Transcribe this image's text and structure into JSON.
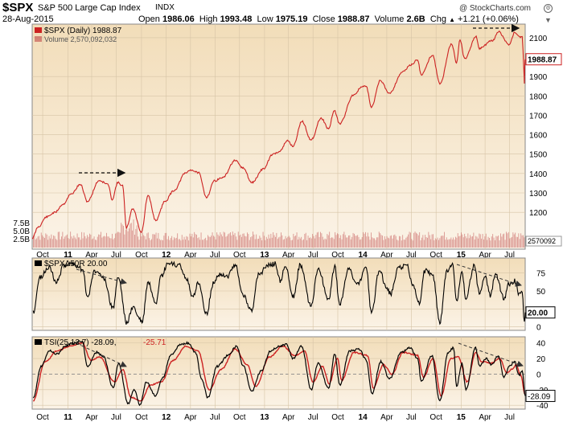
{
  "header": {
    "ticker": "$SPX",
    "name": "S&P 500 Large Cap Index",
    "exchange": "INDX",
    "credit": "@ StockCharts.com",
    "date": "28-Aug-2015",
    "open_label": "Open",
    "open": "1986.06",
    "high_label": "High",
    "high": "1993.48",
    "low_label": "Low",
    "low": "1975.19",
    "close_label": "Close",
    "close": "1988.87",
    "volume_label": "Volume",
    "volume": "2.6B",
    "chg_label": "Chg",
    "chg": "+1.21 (+0.06%)",
    "chg_arrow": "▲"
  },
  "colors": {
    "price": "#cc2222",
    "volume": "#c04848",
    "indicator": "#000000",
    "tsi_signal": "#cc2222",
    "panel_bg_top": "#f2ddb9",
    "panel_bg_bottom": "#fbf3e7",
    "grid": "#d6c4a6"
  },
  "chart_data": [
    {
      "type": "line",
      "panel": "price",
      "legend": "$SPX (Daily) 1988.87",
      "volume_legend": "Volume 2,570,092,032",
      "last_value_label": "1988.87",
      "volume_last_label": "2570092",
      "y_ticks": [
        1200,
        1300,
        1400,
        1500,
        1600,
        1700,
        1800,
        1900,
        2100
      ],
      "y_ticks_extra_labels": [
        "1200",
        "1300",
        "1400",
        "1500",
        "1600",
        "1700",
        "1800",
        "1900",
        "2100"
      ],
      "ylim": [
        1010,
        2170
      ],
      "volume_ticks": [
        "2.5B",
        "5.0B",
        "7.5B"
      ],
      "volume_tick_values": [
        2.5,
        5.0,
        7.5
      ],
      "x_tick_labels": [
        "Oct",
        "11",
        "Apr",
        "Jul",
        "Oct",
        "12",
        "Apr",
        "Jul",
        "Oct",
        "13",
        "Apr",
        "Jul",
        "Oct",
        "14",
        "Apr",
        "Jul",
        "Oct",
        "15",
        "Apr",
        "Jul"
      ],
      "x_tick_dates": [
        "2010-10-01",
        "2011-01-03",
        "2011-04-01",
        "2011-07-01",
        "2011-10-03",
        "2012-01-03",
        "2012-04-02",
        "2012-07-02",
        "2012-10-01",
        "2013-01-02",
        "2013-04-01",
        "2013-07-01",
        "2013-10-01",
        "2014-01-02",
        "2014-04-01",
        "2014-07-01",
        "2014-10-01",
        "2015-01-02",
        "2015-04-01",
        "2015-07-01"
      ],
      "xlim": [
        "2010-08-23",
        "2015-08-28"
      ],
      "series": [
        {
          "x": [
            "2010-08-23",
            "2010-09-15",
            "2010-10-15",
            "2010-11-15",
            "2010-12-15",
            "2011-01-14",
            "2011-02-18",
            "2011-03-16",
            "2011-04-29",
            "2011-05-31",
            "2011-06-16",
            "2011-07-07",
            "2011-07-25",
            "2011-08-08",
            "2011-08-31",
            "2011-10-03",
            "2011-10-27",
            "2011-11-25",
            "2011-12-30",
            "2012-01-31",
            "2012-03-15",
            "2012-04-02",
            "2012-05-01",
            "2012-06-01",
            "2012-06-29",
            "2012-07-31",
            "2012-09-14",
            "2012-10-15",
            "2012-11-15",
            "2012-12-31",
            "2013-01-31",
            "2013-02-28",
            "2013-03-28",
            "2013-04-18",
            "2013-05-21",
            "2013-06-24",
            "2013-07-31",
            "2013-08-28",
            "2013-09-18",
            "2013-10-08",
            "2013-11-29",
            "2013-12-31",
            "2014-01-15",
            "2014-02-03",
            "2014-03-07",
            "2014-04-11",
            "2014-05-30",
            "2014-06-30",
            "2014-07-24",
            "2014-08-07",
            "2014-09-18",
            "2014-10-15",
            "2014-11-28",
            "2014-12-16",
            "2014-12-29",
            "2015-01-15",
            "2015-02-27",
            "2015-03-11",
            "2015-04-30",
            "2015-05-21",
            "2015-06-30",
            "2015-07-20",
            "2015-08-10",
            "2015-08-17",
            "2015-08-20",
            "2015-08-24",
            "2015-08-25",
            "2015-08-26",
            "2015-08-27",
            "2015-08-28"
          ],
          "values": [
            1067,
            1125,
            1176,
            1199,
            1241,
            1293,
            1343,
            1256,
            1364,
            1345,
            1267,
            1353,
            1337,
            1119,
            1219,
            1099,
            1285,
            1158,
            1258,
            1312,
            1402,
            1419,
            1405,
            1278,
            1362,
            1379,
            1466,
            1428,
            1353,
            1426,
            1498,
            1515,
            1569,
            1541,
            1669,
            1573,
            1686,
            1630,
            1725,
            1656,
            1806,
            1848,
            1848,
            1741,
            1878,
            1815,
            1924,
            1960,
            1987,
            1909,
            2011,
            1862,
            2068,
            1972,
            2090,
            1992,
            2104,
            2045,
            2086,
            2130,
            2063,
            2128,
            2104,
            2102,
            2035,
            1893,
            1867,
            1941,
            1988,
            1988.87
          ]
        }
      ]
    },
    {
      "type": "line",
      "panel": "spxa50r",
      "legend": "$SPXA50R 20.00",
      "last_value_label": "20.00",
      "y_ticks": [
        0,
        25,
        50,
        75
      ],
      "ylim": [
        -5,
        96
      ],
      "series": [
        {
          "x": [
            "2010-08-27",
            "2010-09-20",
            "2010-10-25",
            "2010-11-20",
            "2010-12-20",
            "2011-01-20",
            "2011-02-28",
            "2011-03-16",
            "2011-04-12",
            "2011-05-10",
            "2011-06-20",
            "2011-07-08",
            "2011-08-10",
            "2011-09-01",
            "2011-09-25",
            "2011-10-05",
            "2011-10-28",
            "2011-11-25",
            "2011-12-15",
            "2012-01-10",
            "2012-02-20",
            "2012-03-20",
            "2012-04-10",
            "2012-05-01",
            "2012-06-01",
            "2012-06-25",
            "2012-07-20",
            "2012-08-15",
            "2012-09-15",
            "2012-10-15",
            "2012-11-16",
            "2012-12-10",
            "2013-01-15",
            "2013-02-10",
            "2013-03-01",
            "2013-03-20",
            "2013-04-18",
            "2013-05-15",
            "2013-06-24",
            "2013-07-20",
            "2013-08-28",
            "2013-09-20",
            "2013-10-08",
            "2013-11-10",
            "2013-12-13",
            "2014-01-15",
            "2014-02-03",
            "2014-03-05",
            "2014-03-28",
            "2014-04-15",
            "2014-05-15",
            "2014-06-15",
            "2014-07-05",
            "2014-07-31",
            "2014-08-20",
            "2014-09-18",
            "2014-10-15",
            "2014-11-10",
            "2014-12-01",
            "2014-12-16",
            "2015-01-05",
            "2015-01-20",
            "2015-02-20",
            "2015-03-10",
            "2015-04-01",
            "2015-04-20",
            "2015-05-10",
            "2015-06-10",
            "2015-06-29",
            "2015-07-20",
            "2015-08-05",
            "2015-08-17",
            "2015-08-25",
            "2015-08-28"
          ],
          "values": [
            20,
            68,
            84,
            62,
            86,
            88,
            80,
            40,
            78,
            72,
            26,
            70,
            5,
            28,
            12,
            6,
            62,
            30,
            70,
            88,
            86,
            66,
            40,
            62,
            18,
            60,
            74,
            70,
            86,
            44,
            22,
            72,
            86,
            88,
            64,
            84,
            42,
            86,
            28,
            82,
            38,
            84,
            30,
            80,
            60,
            82,
            18,
            80,
            56,
            46,
            82,
            86,
            60,
            32,
            78,
            74,
            6,
            78,
            88,
            36,
            74,
            40,
            86,
            48,
            70,
            44,
            74,
            40,
            60,
            64,
            46,
            50,
            5,
            20
          ]
        }
      ]
    },
    {
      "type": "line",
      "panel": "tsi",
      "legend": "TSI(25,13,7) -28.09,",
      "legend_signal": "-25.71",
      "last_value_label": "-28.09",
      "y_ticks": [
        -40,
        -20,
        0,
        20,
        40
      ],
      "ylim": [
        -45,
        48
      ],
      "series": [
        {
          "x": [
            "2010-08-27",
            "2010-09-25",
            "2010-10-25",
            "2010-11-25",
            "2010-12-25",
            "2011-01-20",
            "2011-02-25",
            "2011-03-16",
            "2011-04-20",
            "2011-05-15",
            "2011-06-20",
            "2011-07-10",
            "2011-08-15",
            "2011-09-05",
            "2011-09-28",
            "2011-10-20",
            "2011-11-25",
            "2011-12-20",
            "2012-01-20",
            "2012-02-25",
            "2012-03-25",
            "2012-04-20",
            "2012-05-15",
            "2012-06-05",
            "2012-07-10",
            "2012-08-20",
            "2012-09-20",
            "2012-10-15",
            "2012-11-16",
            "2012-12-20",
            "2013-01-25",
            "2013-02-25",
            "2013-03-25",
            "2013-04-18",
            "2013-05-20",
            "2013-06-24",
            "2013-07-20",
            "2013-08-28",
            "2013-09-20",
            "2013-10-08",
            "2013-11-15",
            "2013-12-20",
            "2014-01-15",
            "2014-02-05",
            "2014-03-10",
            "2014-04-11",
            "2014-05-25",
            "2014-06-25",
            "2014-07-25",
            "2014-08-07",
            "2014-09-15",
            "2014-10-15",
            "2014-11-15",
            "2014-12-05",
            "2014-12-16",
            "2015-01-05",
            "2015-01-20",
            "2015-02-25",
            "2015-03-11",
            "2015-04-05",
            "2015-04-25",
            "2015-05-20",
            "2015-06-10",
            "2015-06-30",
            "2015-07-20",
            "2015-08-05",
            "2015-08-17",
            "2015-08-28"
          ],
          "values": [
            -30,
            10,
            30,
            26,
            36,
            40,
            42,
            10,
            28,
            22,
            -18,
            14,
            -38,
            -20,
            -40,
            -10,
            -28,
            -5,
            24,
            38,
            40,
            28,
            -8,
            -30,
            10,
            24,
            36,
            10,
            -22,
            4,
            30,
            36,
            38,
            20,
            36,
            -20,
            14,
            -18,
            26,
            -14,
            30,
            32,
            18,
            -26,
            16,
            -6,
            28,
            34,
            20,
            -10,
            24,
            -34,
            28,
            34,
            -16,
            14,
            -20,
            34,
            10,
            20,
            12,
            24,
            -4,
            10,
            16,
            -2,
            4,
            -28
          ]
        },
        {
          "x": [
            "2010-08-27",
            "2010-10-10",
            "2010-11-25",
            "2011-01-10",
            "2011-02-25",
            "2011-03-30",
            "2011-05-01",
            "2011-06-25",
            "2011-07-25",
            "2011-08-25",
            "2011-10-01",
            "2011-11-05",
            "2011-12-15",
            "2012-01-30",
            "2012-03-15",
            "2012-04-30",
            "2012-06-10",
            "2012-07-25",
            "2012-09-15",
            "2012-10-30",
            "2012-11-30",
            "2013-01-20",
            "2013-03-10",
            "2013-04-25",
            "2013-05-30",
            "2013-07-01",
            "2013-08-05",
            "2013-08-30",
            "2013-09-30",
            "2013-10-15",
            "2013-11-30",
            "2014-01-20",
            "2014-02-10",
            "2014-03-20",
            "2014-04-20",
            "2014-06-01",
            "2014-07-25",
            "2014-08-15",
            "2014-09-20",
            "2014-10-20",
            "2014-11-25",
            "2014-12-22",
            "2015-01-25",
            "2015-02-25",
            "2015-03-20",
            "2015-04-25",
            "2015-05-25",
            "2015-06-20",
            "2015-07-10",
            "2015-07-25",
            "2015-08-10",
            "2015-08-28"
          ],
          "values": [
            -34,
            16,
            30,
            36,
            40,
            18,
            22,
            -10,
            6,
            -30,
            -34,
            -14,
            -10,
            18,
            36,
            30,
            -20,
            6,
            32,
            12,
            -16,
            22,
            36,
            24,
            30,
            -10,
            10,
            -12,
            20,
            -8,
            28,
            24,
            -18,
            12,
            0,
            28,
            24,
            -4,
            20,
            -28,
            20,
            22,
            -10,
            28,
            16,
            14,
            20,
            2,
            6,
            12,
            0,
            -25.71
          ]
        }
      ]
    }
  ]
}
